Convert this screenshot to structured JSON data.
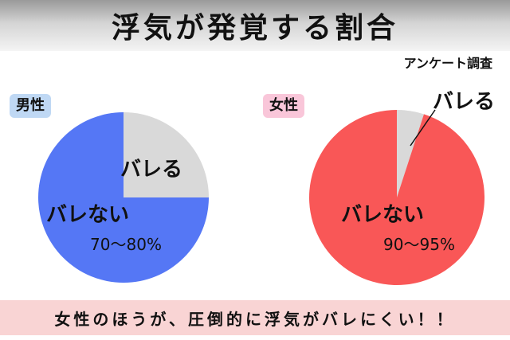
{
  "title": "浮気が発覚する割合",
  "subtitle": "アンケート調査",
  "footer": "女性のほうが、圧倒的に浮気がバレにくい！！",
  "colors": {
    "male_not_caught": "#5577f5",
    "female_not_caught": "#f95757",
    "caught": "#d9d9d9"
  },
  "chart_data": [
    {
      "type": "pie",
      "title": "男性",
      "slices": [
        {
          "label": "バレない",
          "value": 75,
          "value_label": "70〜80%"
        },
        {
          "label": "バレる",
          "value": 25
        }
      ]
    },
    {
      "type": "pie",
      "title": "女性",
      "slices": [
        {
          "label": "バレない",
          "value": 95,
          "value_label": "90〜95%"
        },
        {
          "label": "バレる",
          "value": 5
        }
      ]
    }
  ]
}
